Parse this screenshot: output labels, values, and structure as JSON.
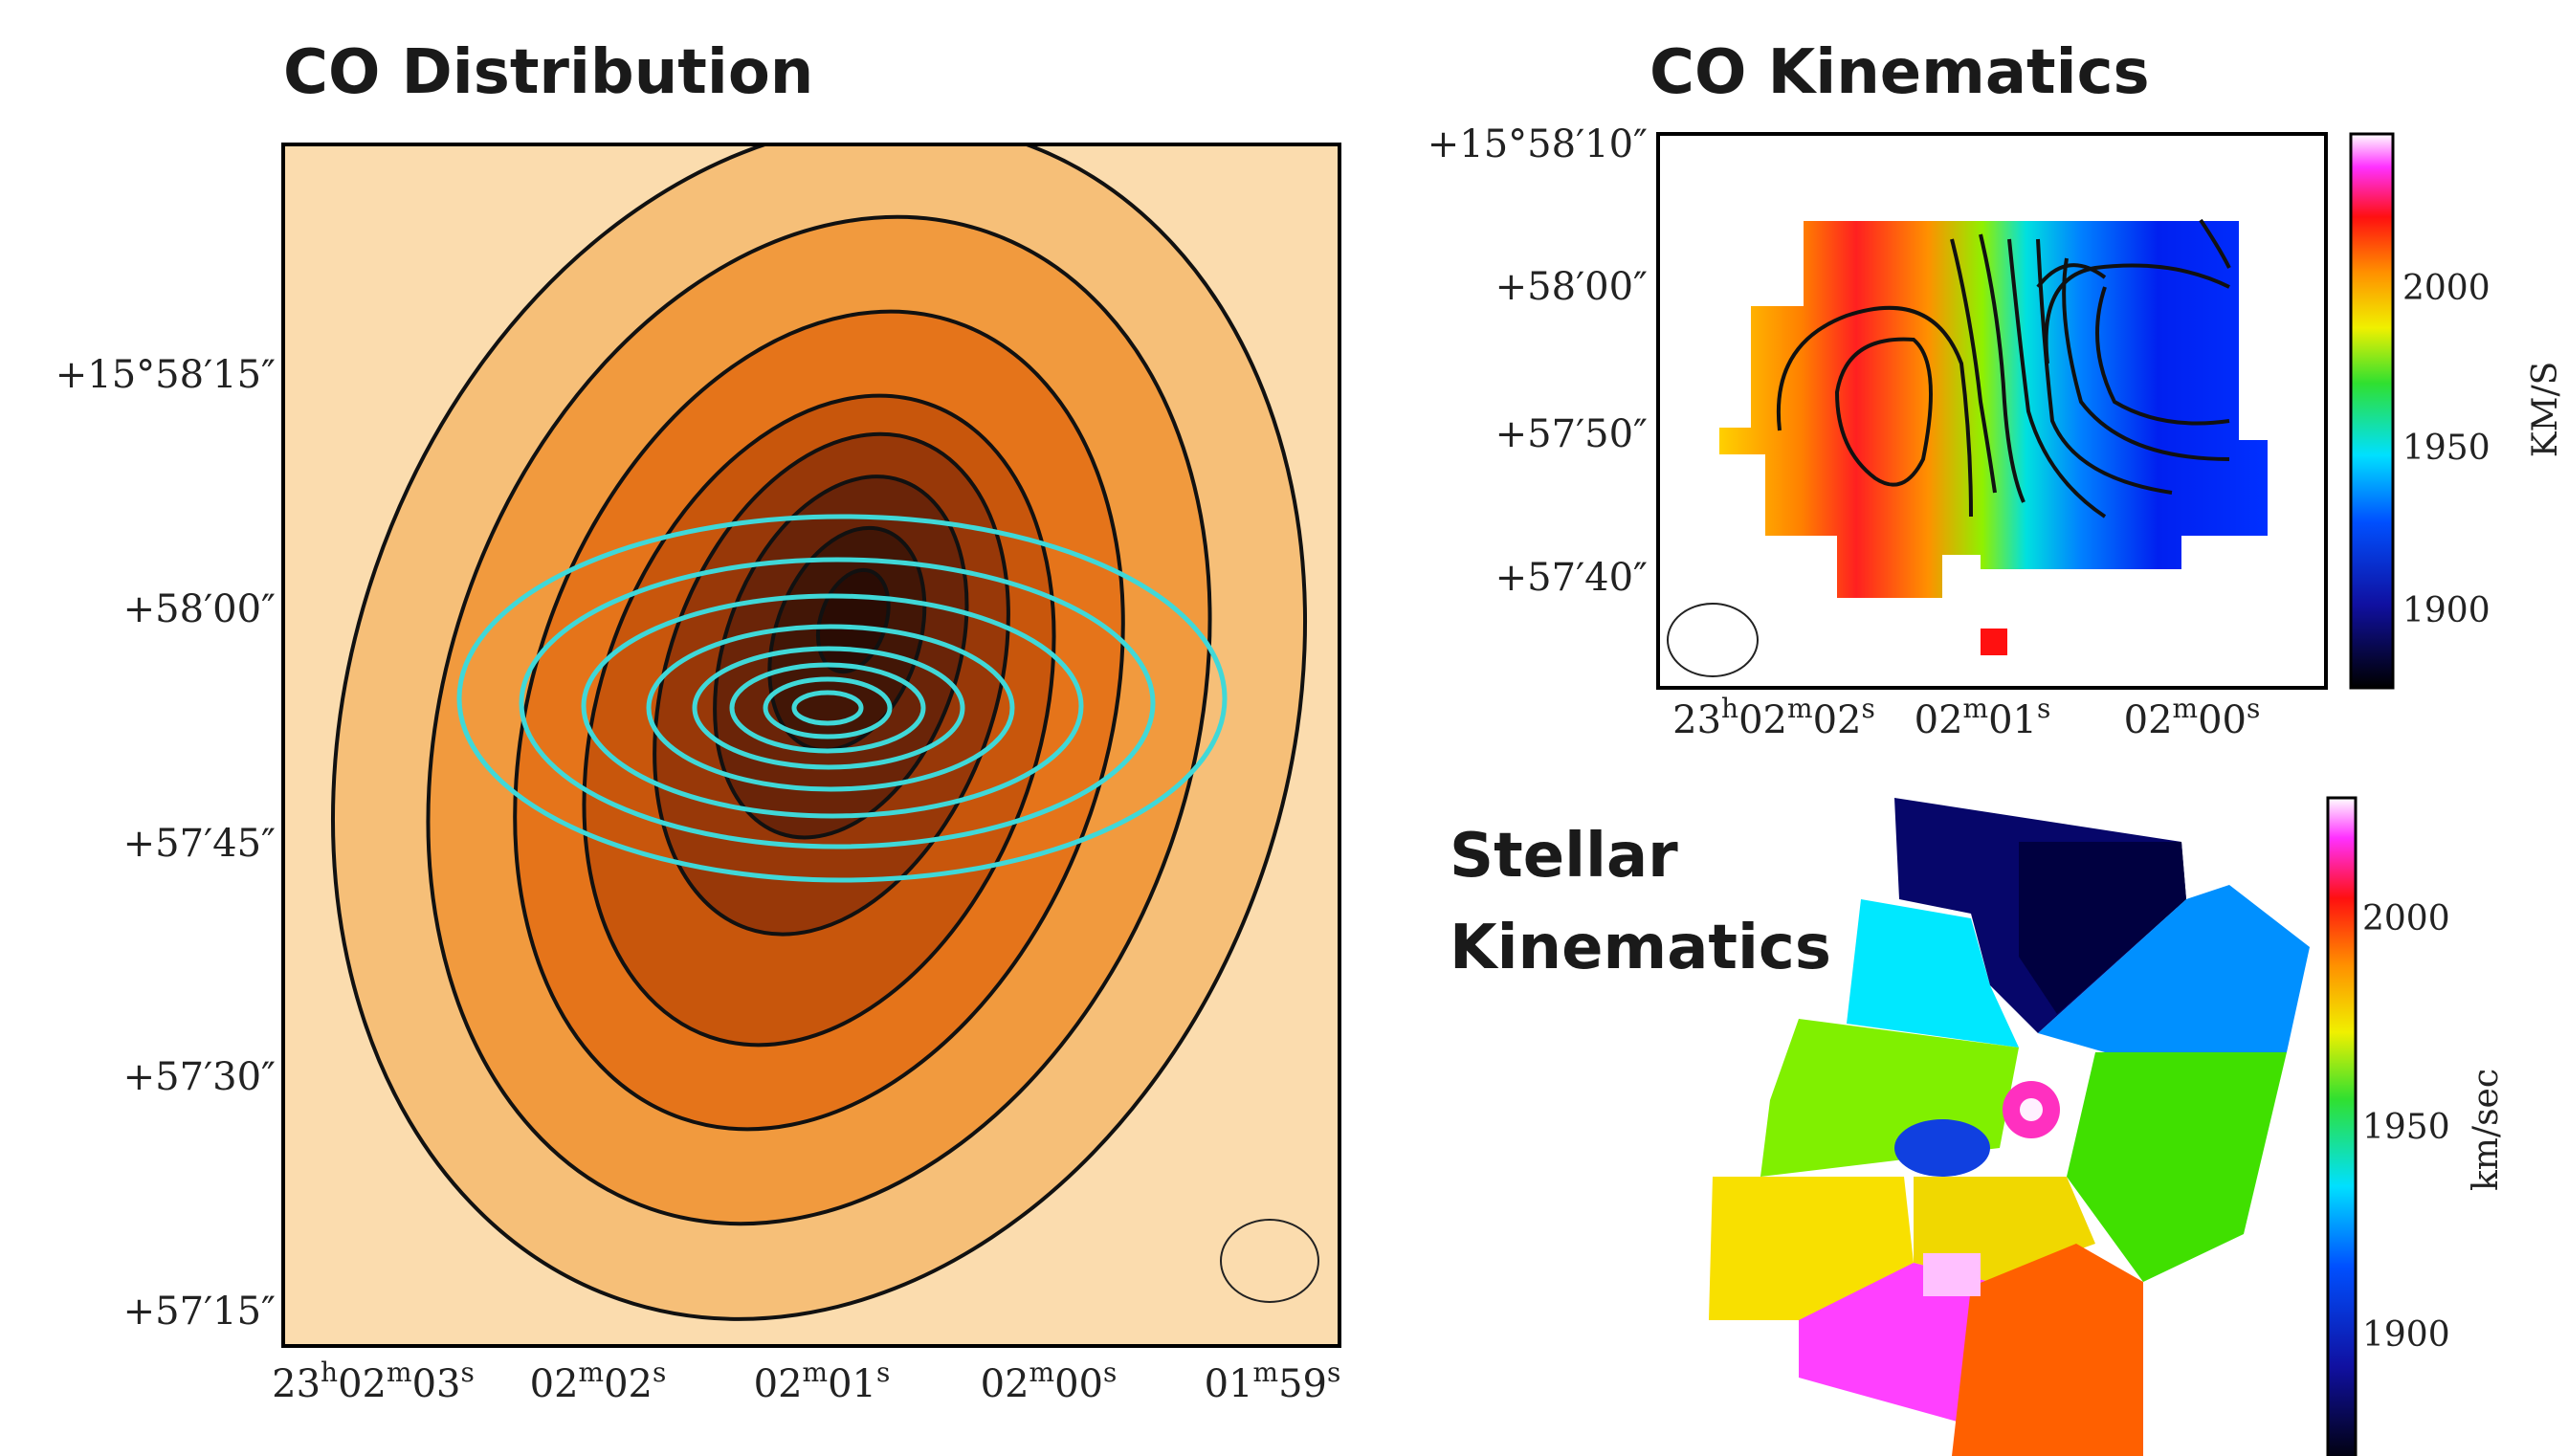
{
  "panels": [
    {
      "title": "CO Distribution",
      "y_ticks": [
        "+15°58′15″",
        "+58′00″",
        "+57′45″",
        "+57′30″",
        "+57′15″"
      ],
      "x_ticks": [
        "23h02m03s",
        "02m02s",
        "02m01s",
        "02m00s",
        "01m59s"
      ]
    },
    {
      "title": "CO Kinematics",
      "y_ticks": [
        "+15°58′10″",
        "+58′00″",
        "+57′50″",
        "+57′40″"
      ],
      "x_ticks": [
        "23h02m02s",
        "02m01s",
        "02m00s"
      ],
      "colorbar": {
        "ticks": [
          2000,
          1950,
          1900
        ],
        "label": "KM/S"
      }
    },
    {
      "title_lines": [
        "Stellar",
        "Kinematics"
      ],
      "colorbar": {
        "ticks": [
          2000,
          1950,
          1900
        ],
        "label": "km/sec"
      }
    }
  ]
}
